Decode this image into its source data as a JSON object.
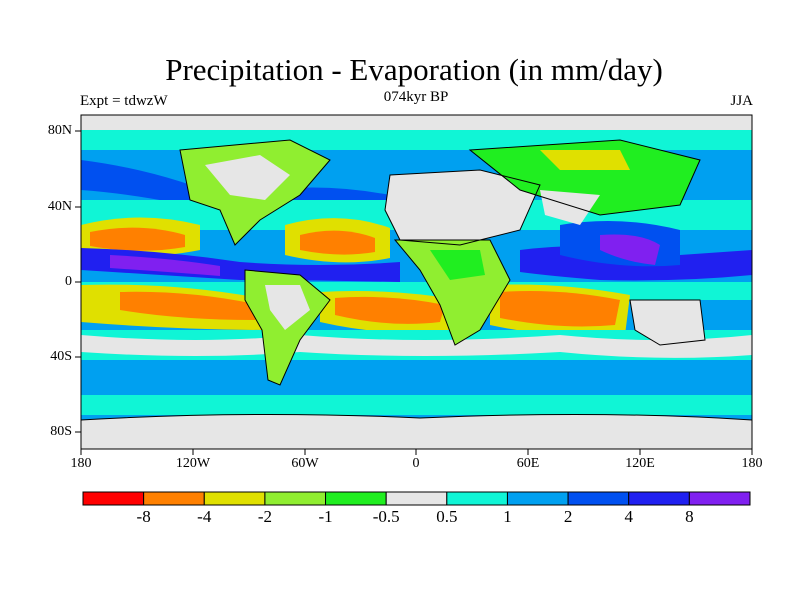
{
  "header": {
    "title": "Precipitation - Evaporation (in mm/day)",
    "subtitle": "074kyr BP",
    "expt": "Expt = tdwzW",
    "season": "JJA"
  },
  "map": {
    "lat_ticks": [
      "80N",
      "40N",
      "0",
      "40S",
      "80S"
    ],
    "lon_ticks": [
      "180",
      "120W",
      "60W",
      "0",
      "60E",
      "120E",
      "180"
    ]
  },
  "colorbar": {
    "labels": [
      "-8",
      "-4",
      "-2",
      "-1",
      "-0.5",
      "0.5",
      "1",
      "2",
      "4",
      "8"
    ],
    "colors": [
      "#ff0000",
      "#ff8000",
      "#e0e000",
      "#90ee30",
      "#20ee20",
      "#e6e6e6",
      "#10f5d6",
      "#00a0f0",
      "#0050f0",
      "#2020f0",
      "#8020f0"
    ]
  }
}
